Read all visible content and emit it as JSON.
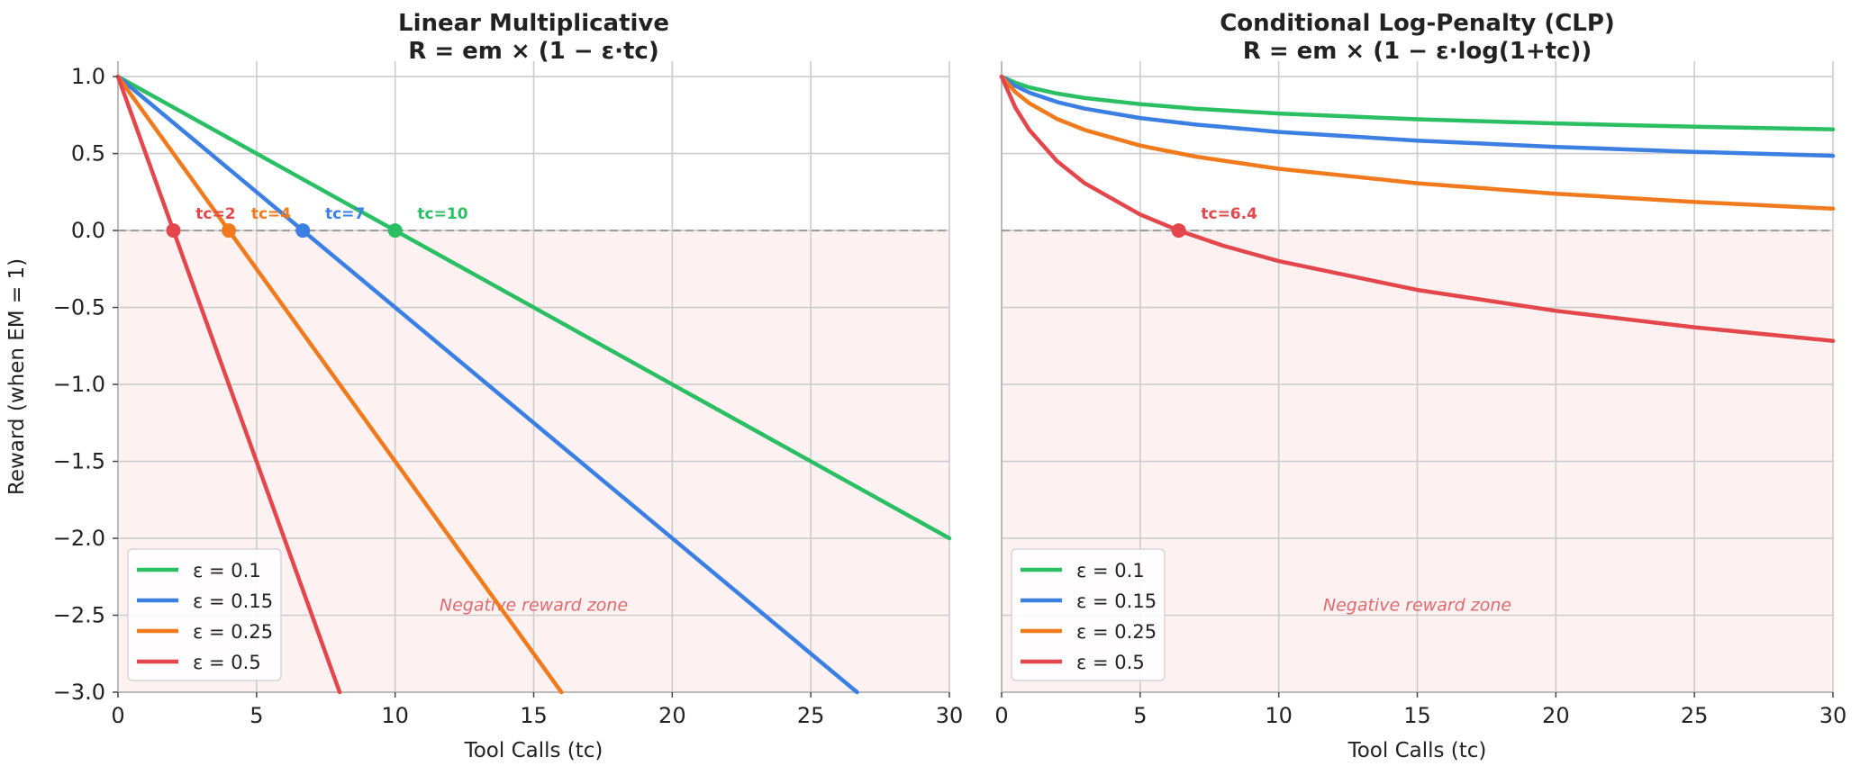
{
  "chart_data": [
    {
      "type": "line",
      "title": "Linear Multiplicative",
      "subtitle": "R = em × (1 − ε·tc)",
      "xlabel": "Tool Calls (tc)",
      "ylabel": "Reward (when EM = 1)",
      "xlim": [
        0,
        30
      ],
      "ylim": [
        -3.0,
        1.1
      ],
      "xticks": [
        0,
        5,
        10,
        15,
        20,
        25,
        30
      ],
      "xtick_labels": [
        "0",
        "5",
        "10",
        "15",
        "20",
        "25",
        "30"
      ],
      "yticks": [
        1.0,
        0.5,
        0.0,
        -0.5,
        -1.0,
        -1.5,
        -2.0,
        -2.5,
        -3.0
      ],
      "ytick_labels": [
        "1.0",
        "0.5",
        "0.0",
        "−0.5",
        "−1.0",
        "−1.5",
        "−2.0",
        "−2.5",
        "−3.0"
      ],
      "grid": true,
      "legend": "lower-left",
      "reference_line": {
        "y": 0,
        "style": "dashed"
      },
      "shaded_region": {
        "label": "Negative reward zone",
        "y_from": -3.0,
        "y_to": 0
      },
      "series": [
        {
          "name": "ε = 0.1",
          "color": "#2bbf63",
          "x": [
            0,
            30
          ],
          "y": [
            1.0,
            -2.0
          ]
        },
        {
          "name": "ε = 0.15",
          "color": "#3b7fe3",
          "x": [
            0,
            26.67
          ],
          "y": [
            1.0,
            -3.0
          ]
        },
        {
          "name": "ε = 0.25",
          "color": "#f07a1c",
          "x": [
            0,
            16
          ],
          "y": [
            1.0,
            -3.0
          ]
        },
        {
          "name": "ε = 0.5",
          "color": "#e4474b",
          "x": [
            0,
            8
          ],
          "y": [
            1.0,
            -3.0
          ]
        }
      ],
      "markers": [
        {
          "x": 2,
          "y": 0,
          "color": "#e4474b",
          "label": "tc=2",
          "label_x": 3.0
        },
        {
          "x": 4,
          "y": 0,
          "color": "#f07a1c",
          "label": "tc=4",
          "label_x": 5.0
        },
        {
          "x": 6.67,
          "y": 0,
          "color": "#3b7fe3",
          "label": "tc=7",
          "label_x": 7.67
        },
        {
          "x": 10,
          "y": 0,
          "color": "#2bbf63",
          "label": "tc=10",
          "label_x": 11.0
        }
      ]
    },
    {
      "type": "line",
      "title": "Conditional Log-Penalty (CLP)",
      "subtitle": "R = em × (1 − ε·log(1+tc))",
      "xlabel": "Tool Calls (tc)",
      "xlim": [
        0,
        30
      ],
      "ylim": [
        -3.0,
        1.1
      ],
      "xticks": [
        0,
        5,
        10,
        15,
        20,
        25,
        30
      ],
      "xtick_labels": [
        "0",
        "5",
        "10",
        "15",
        "20",
        "25",
        "30"
      ],
      "grid": true,
      "legend": "lower-left",
      "reference_line": {
        "y": 0,
        "style": "dashed"
      },
      "shaded_region": {
        "label": "Negative reward zone",
        "y_from": -3.0,
        "y_to": 0
      },
      "series": [
        {
          "name": "ε = 0.1",
          "color": "#2bbf63",
          "x": [
            0,
            0.5,
            1,
            2,
            3,
            5,
            7,
            10,
            15,
            20,
            25,
            30
          ],
          "y": [
            1.0,
            0.96,
            0.93,
            0.89,
            0.861,
            0.821,
            0.792,
            0.76,
            0.723,
            0.696,
            0.674,
            0.657
          ]
        },
        {
          "name": "ε = 0.15",
          "color": "#3b7fe3",
          "x": [
            0,
            0.5,
            1,
            2,
            3,
            5,
            7,
            10,
            15,
            20,
            25,
            30
          ],
          "y": [
            1.0,
            0.939,
            0.896,
            0.835,
            0.792,
            0.731,
            0.688,
            0.64,
            0.584,
            0.543,
            0.511,
            0.485
          ]
        },
        {
          "name": "ε = 0.25",
          "color": "#f07a1c",
          "x": [
            0,
            0.5,
            1,
            2,
            3,
            5,
            7,
            10,
            15,
            20,
            25,
            30
          ],
          "y": [
            1.0,
            0.899,
            0.827,
            0.725,
            0.653,
            0.552,
            0.48,
            0.401,
            0.307,
            0.239,
            0.185,
            0.142
          ]
        },
        {
          "name": "ε = 0.5",
          "color": "#e4474b",
          "x": [
            0,
            0.5,
            1,
            2,
            3,
            5,
            6.39,
            8,
            10,
            15,
            20,
            25,
            30
          ],
          "y": [
            1.0,
            0.797,
            0.653,
            0.451,
            0.307,
            0.104,
            0.0,
            -0.099,
            -0.199,
            -0.386,
            -0.522,
            -0.629,
            -0.717
          ]
        }
      ],
      "markers": [
        {
          "x": 6.39,
          "y": 0,
          "color": "#e4474b",
          "label": "tc=6.4",
          "label_x": 7.39
        }
      ]
    }
  ]
}
